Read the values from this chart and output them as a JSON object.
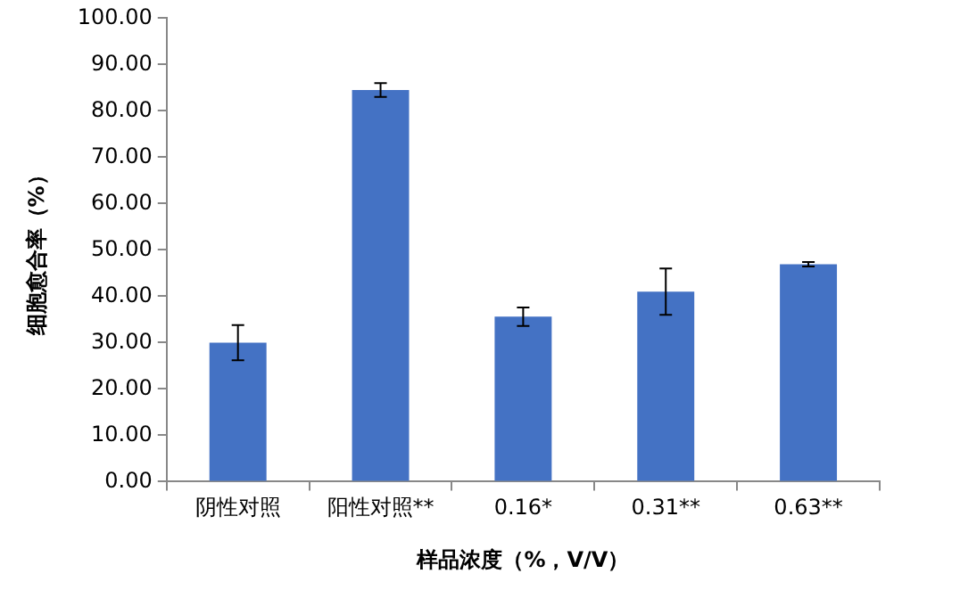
{
  "chart_data": {
    "type": "bar",
    "xlabel": "样品浓度（%，V/V）",
    "ylabel": "细胞愈合率（%）",
    "categories": [
      "阴性对照",
      "阳性对照**",
      "0.16*",
      "0.31**",
      "0.63**"
    ],
    "values": [
      30.0,
      84.5,
      35.6,
      41.0,
      46.9
    ],
    "errors": [
      3.8,
      1.5,
      2.0,
      5.0,
      0.5
    ],
    "color": "#4472c4",
    "ylim": [
      0,
      100
    ],
    "yticks": [
      {
        "value": 0,
        "label": "0.00"
      },
      {
        "value": 10,
        "label": "10.00"
      },
      {
        "value": 20,
        "label": "20.00"
      },
      {
        "value": 30,
        "label": "30.00"
      },
      {
        "value": 40,
        "label": "40.00"
      },
      {
        "value": 50,
        "label": "50.00"
      },
      {
        "value": 60,
        "label": "60.00"
      },
      {
        "value": 70,
        "label": "70.00"
      },
      {
        "value": 80,
        "label": "80.00"
      },
      {
        "value": 90,
        "label": "90.00"
      },
      {
        "value": 100,
        "label": "100.00"
      }
    ],
    "grid": false,
    "legend": false
  }
}
